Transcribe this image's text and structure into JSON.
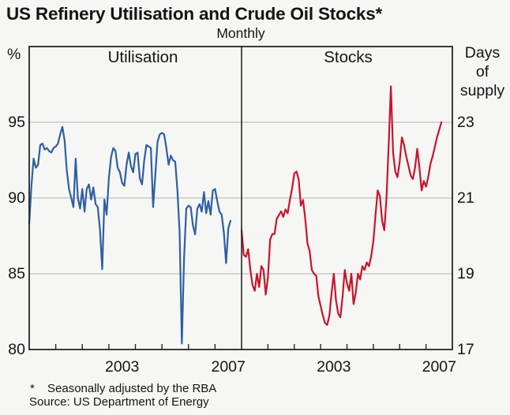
{
  "header": {
    "title": "US Refinery Utilisation and Crude Oil Stocks*",
    "subtitle": "Monthly"
  },
  "footnotes": {
    "marker": "*",
    "note": "Seasonally adjusted by the RBA",
    "source": "Source: US Department of Energy"
  },
  "chart_data": {
    "type": "line",
    "title": "US Refinery Utilisation and Crude Oil Stocks*",
    "subtitle": "Monthly",
    "frequency": "monthly",
    "series_start": "2000-01",
    "series_end": "2007-08",
    "x_start_year": 2000,
    "x_end_year": 2008,
    "x_year_ticks": [
      2001,
      2002,
      2003,
      2004,
      2005,
      2006,
      2007
    ],
    "x_labeled_years": [
      "2003",
      "2007"
    ],
    "x_labeled_year_values": [
      2003,
      2007
    ],
    "grid": "horizontal",
    "colors": {
      "utilisation_line": "#2e5fa3",
      "stocks_line": "#c8142c",
      "gridline": "#b3b3b3",
      "frame": "#262626",
      "background": "#f6f6f4",
      "text": "#141414"
    },
    "panels": [
      {
        "id": "utilisation",
        "label": "Utilisation",
        "axis_side": "left",
        "axis_title": "%",
        "ylim": [
          80,
          100
        ],
        "ytick_labels": [
          "95",
          "90",
          "85",
          "80"
        ],
        "ytick_values": [
          95,
          90,
          85,
          80
        ],
        "grid_values": [
          95,
          90,
          85
        ],
        "values": [
          88.3,
          90.8,
          92.6,
          92.0,
          92.2,
          93.5,
          93.6,
          93.2,
          93.3,
          93.1,
          93.0,
          93.3,
          93.4,
          93.6,
          94.2,
          94.7,
          93.8,
          91.8,
          90.6,
          90.0,
          89.4,
          92.6,
          90.0,
          89.3,
          90.6,
          89.1,
          90.6,
          90.9,
          89.9,
          90.7,
          89.6,
          89.4,
          87.9,
          85.3,
          89.9,
          88.9,
          91.3,
          92.7,
          93.3,
          93.1,
          92.0,
          91.7,
          91.0,
          90.8,
          92.2,
          93.0,
          92.1,
          91.7,
          92.9,
          93.0,
          91.3,
          90.9,
          92.5,
          93.5,
          93.4,
          93.3,
          89.4,
          91.5,
          93.7,
          94.2,
          94.3,
          94.2,
          93.3,
          92.2,
          92.8,
          92.5,
          92.4,
          90.5,
          87.7,
          80.4,
          86.0,
          89.3,
          89.5,
          89.4,
          88.2,
          87.6,
          89.3,
          89.6,
          89.1,
          90.4,
          89.0,
          89.8,
          88.9,
          90.5,
          90.6,
          89.8,
          89.1,
          88.9,
          87.7,
          85.7,
          88.0,
          88.5
        ]
      },
      {
        "id": "stocks",
        "label": "Stocks",
        "axis_side": "right",
        "axis_title": [
          "Days",
          "of",
          "supply"
        ],
        "ylim": [
          17,
          25
        ],
        "ytick_labels": [
          "23",
          "21",
          "19",
          "17"
        ],
        "ytick_values": [
          23,
          21,
          19,
          17
        ],
        "grid_values": [
          23,
          21,
          19
        ],
        "values": [
          20.15,
          19.5,
          19.45,
          19.65,
          19.1,
          18.7,
          18.55,
          19.0,
          18.65,
          19.2,
          19.1,
          18.45,
          18.9,
          19.9,
          20.05,
          20.05,
          20.45,
          20.55,
          20.65,
          20.5,
          20.7,
          20.6,
          20.95,
          21.25,
          21.65,
          21.7,
          21.5,
          20.8,
          20.95,
          20.45,
          19.8,
          19.6,
          19.1,
          19.0,
          18.95,
          18.4,
          18.15,
          17.9,
          17.7,
          17.65,
          17.9,
          18.5,
          19.0,
          18.3,
          17.95,
          17.85,
          18.4,
          19.1,
          18.75,
          18.55,
          19.0,
          18.2,
          18.5,
          19.0,
          18.85,
          19.2,
          19.1,
          19.3,
          19.2,
          19.45,
          19.85,
          20.55,
          21.2,
          21.05,
          20.4,
          20.15,
          21.0,
          22.4,
          23.95,
          22.2,
          21.7,
          21.55,
          21.95,
          22.6,
          22.4,
          22.1,
          21.85,
          21.6,
          21.5,
          21.8,
          22.3,
          21.8,
          21.2,
          21.45,
          21.3,
          21.55,
          21.9,
          22.1,
          22.35,
          22.6,
          22.8,
          23.0
        ]
      }
    ]
  }
}
